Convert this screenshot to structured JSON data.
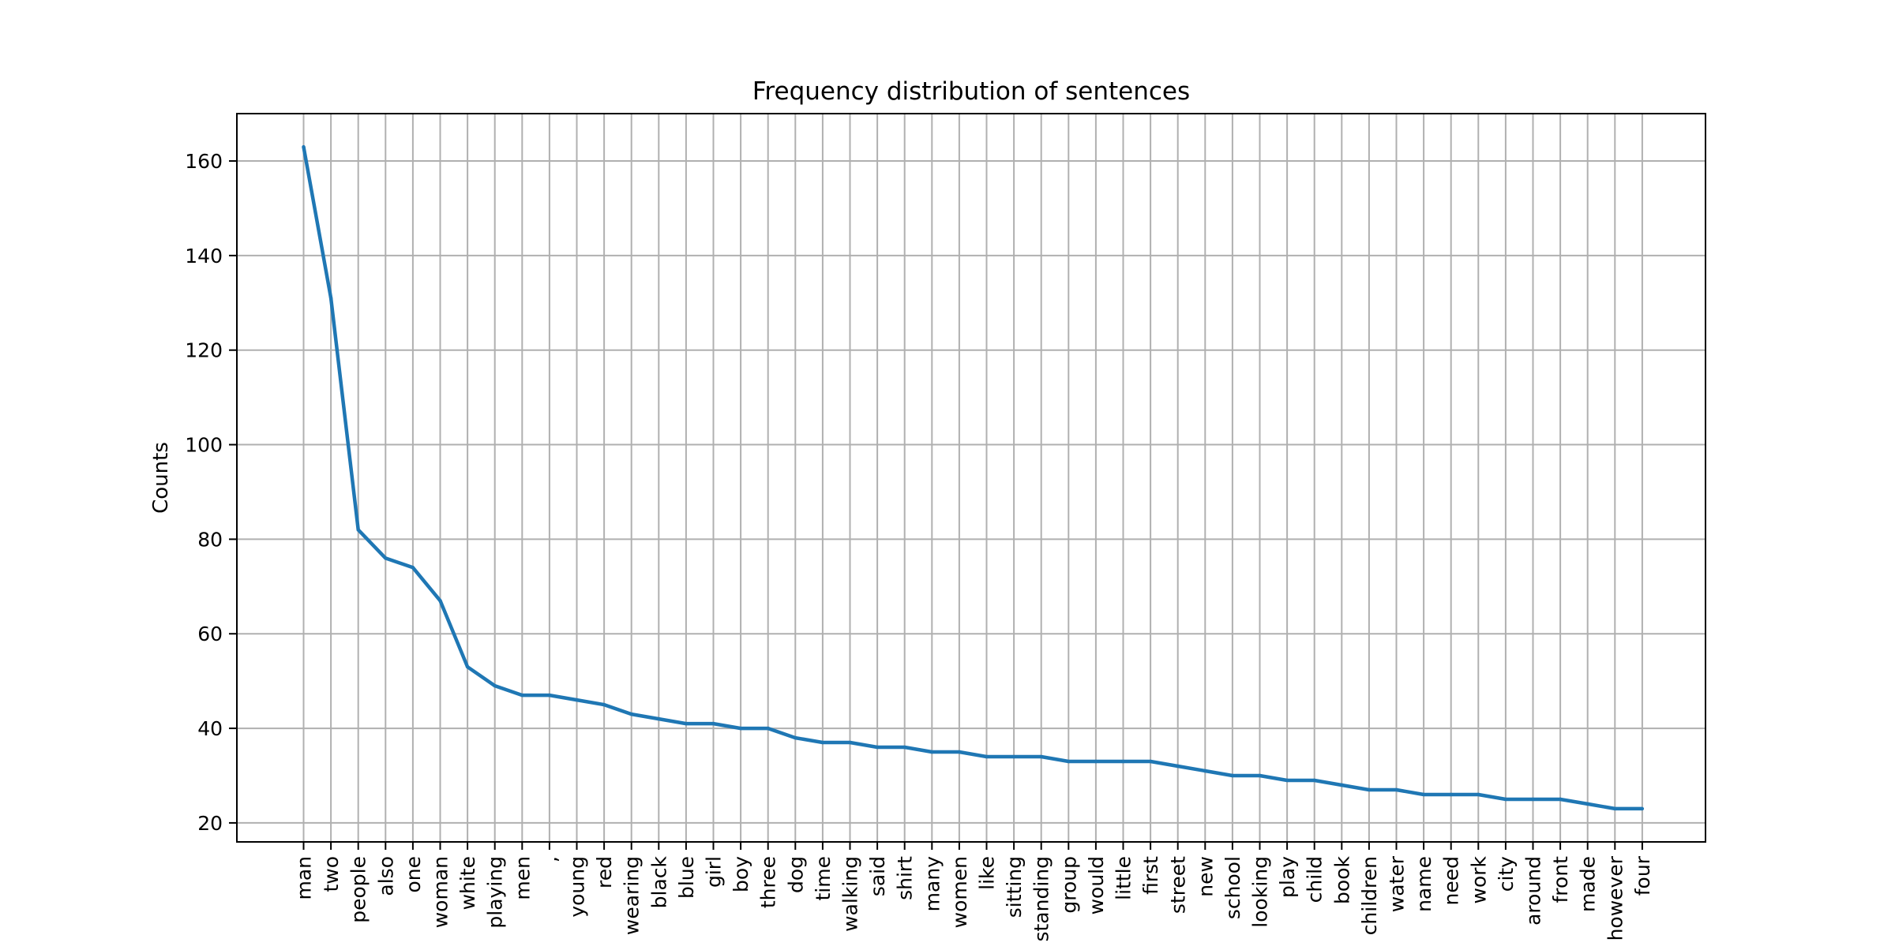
{
  "chart_data": {
    "type": "line",
    "title": "Frequency distribution of sentences",
    "xlabel": "",
    "ylabel": "Counts",
    "ylim": [
      15.98,
      170.02
    ],
    "yticks": [
      20,
      40,
      60,
      80,
      100,
      120,
      140,
      160
    ],
    "grid": true,
    "legend": "none",
    "line_color": "#1f77b4",
    "grid_color": "#b0b0b0",
    "categories": [
      "man",
      "two",
      "people",
      "also",
      "one",
      "woman",
      "white",
      "playing",
      "men",
      ",",
      "young",
      "red",
      "wearing",
      "black",
      "blue",
      "girl",
      "boy",
      "three",
      "dog",
      "time",
      "walking",
      "said",
      "shirt",
      "many",
      "women",
      "like",
      "sitting",
      "standing",
      "group",
      "would",
      "little",
      "first",
      "street",
      "new",
      "school",
      "looking",
      "play",
      "child",
      "book",
      "children",
      "water",
      "name",
      "need",
      "work",
      "city",
      "around",
      "front",
      "made",
      "however",
      "four"
    ],
    "values": [
      163,
      131,
      82,
      76,
      74,
      67,
      53,
      49,
      47,
      47,
      46,
      45,
      43,
      42,
      41,
      41,
      40,
      40,
      38,
      37,
      37,
      36,
      36,
      35,
      35,
      34,
      34,
      34,
      33,
      33,
      33,
      33,
      32,
      31,
      30,
      30,
      29,
      29,
      28,
      27,
      27,
      26,
      26,
      26,
      25,
      25,
      25,
      24,
      23,
      23
    ]
  }
}
